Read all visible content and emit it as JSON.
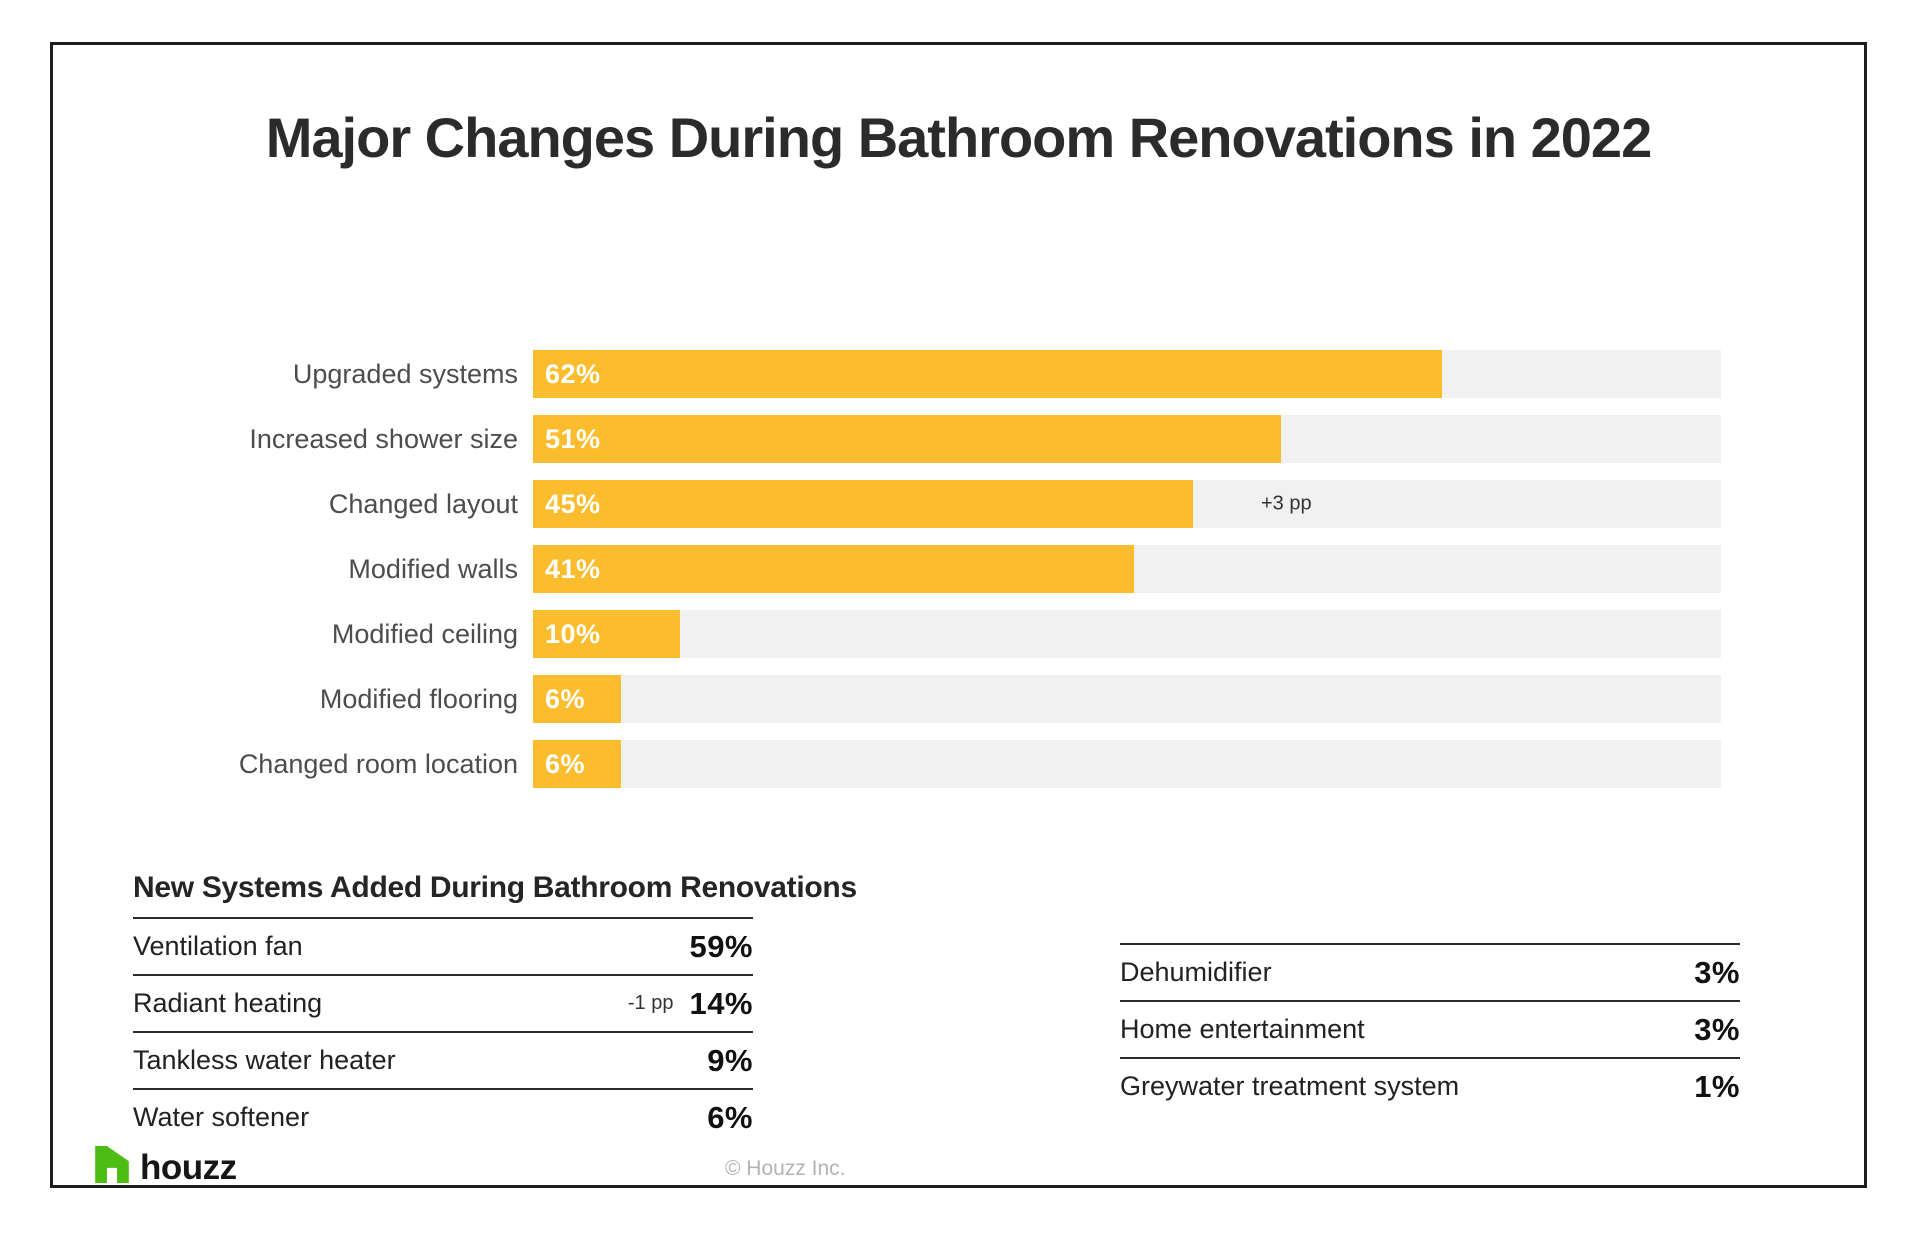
{
  "chart_data": [
    {
      "type": "bar",
      "orientation": "horizontal",
      "title": "Major Changes During Bathroom Renovations in 2022",
      "categories": [
        "Upgraded systems",
        "Increased shower size",
        "Changed layout",
        "Modified walls",
        "Modified ceiling",
        "Modified flooring",
        "Changed room location"
      ],
      "values": [
        62,
        51,
        45,
        41,
        10,
        6,
        6
      ],
      "value_labels": [
        "62%",
        "51%",
        "45%",
        "41%",
        "10%",
        "6%",
        "6%"
      ],
      "annotations": [
        {
          "category_index": 2,
          "text": "+3 pp"
        }
      ],
      "xlim": [
        0,
        81
      ],
      "grid": false,
      "legend": false,
      "bar_color": "#FBBD2D",
      "track_color": "#F1F1F1"
    },
    {
      "type": "table",
      "title": "New Systems Added During Bathroom Renovations",
      "rows": [
        {
          "label": "Ventilation fan",
          "value": "59%"
        },
        {
          "label": "Radiant heating",
          "note": "-1 pp",
          "value": "14%"
        },
        {
          "label": "Tankless water heater",
          "value": "9%"
        },
        {
          "label": "Water softener",
          "value": "6%"
        }
      ]
    },
    {
      "type": "table",
      "rows": [
        {
          "label": "Dehumidifier",
          "value": "3%"
        },
        {
          "label": "Home entertainment",
          "value": "3%"
        },
        {
          "label": "Greywater treatment system",
          "value": "1%"
        }
      ]
    }
  ],
  "footer": {
    "brand": "houzz",
    "brand_color": "#4DBC15",
    "copyright": "© Houzz Inc."
  }
}
